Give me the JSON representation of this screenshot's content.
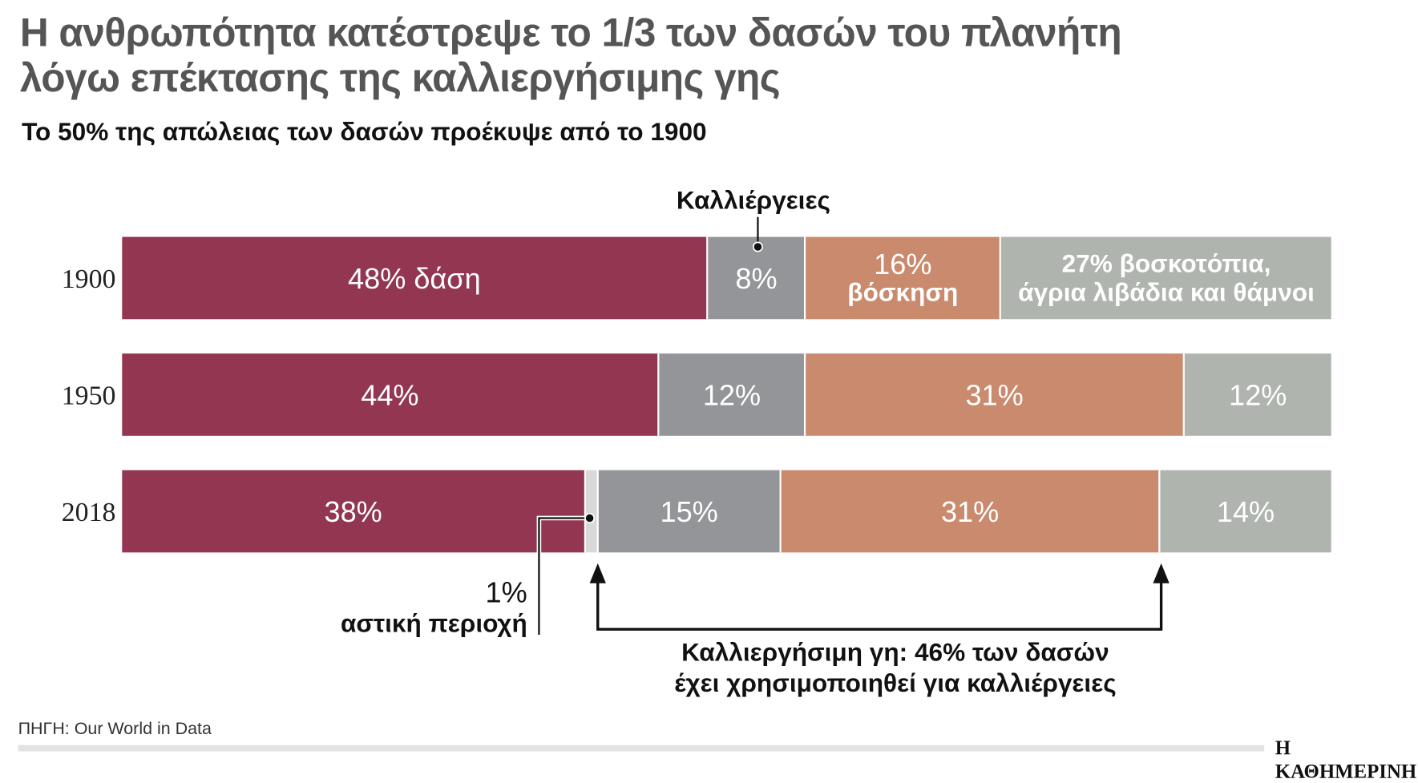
{
  "title_line1": "Η ανθρωπότητα κατέστρεψε το 1/3 των δασών του πλανήτη",
  "title_line2": "λόγω επέκτασης της καλλιεργήσιμης γης",
  "subtitle": "Το 50% της απώλειας των δασών προέκυψε από το 1900",
  "chart_data": {
    "type": "bar",
    "orientation": "horizontal-stacked",
    "categories": [
      "1900",
      "1950",
      "2018"
    ],
    "colors": {
      "forest": "#923651",
      "urban": "#d9d9d9",
      "cropland": "#939598",
      "grazing": "#c98a6e",
      "rough_grazing": "#afb4af"
    },
    "rows": [
      {
        "year": "1900",
        "segments": [
          {
            "key": "forest",
            "value": 48,
            "label": "48% δάση"
          },
          {
            "key": "cropland",
            "value": 8,
            "label": "8%"
          },
          {
            "key": "grazing",
            "value": 16,
            "label": "16%\nβόσκηση"
          },
          {
            "key": "rough_grazing",
            "value": 27,
            "label": "27% βοσκοτόπια,\nάγρια λιβάδια και θάμνοι"
          }
        ]
      },
      {
        "year": "1950",
        "segments": [
          {
            "key": "forest",
            "value": 44,
            "label": "44%"
          },
          {
            "key": "cropland",
            "value": 12,
            "label": "12%"
          },
          {
            "key": "grazing",
            "value": 31,
            "label": "31%"
          },
          {
            "key": "rough_grazing",
            "value": 12,
            "label": "12%"
          }
        ]
      },
      {
        "year": "2018",
        "segments": [
          {
            "key": "forest",
            "value": 38,
            "label": "38%"
          },
          {
            "key": "urban",
            "value": 1,
            "label": ""
          },
          {
            "key": "cropland",
            "value": 15,
            "label": "15%"
          },
          {
            "key": "grazing",
            "value": 31,
            "label": "31%"
          },
          {
            "key": "rough_grazing",
            "value": 14,
            "label": "14%"
          }
        ]
      }
    ],
    "annotations": {
      "cropland": "Καλλιέργειες",
      "urban_value": "1%",
      "urban_label": "αστική περιοχή",
      "agri_line1": "Καλλιεργήσιμη γη: 46% των δασών",
      "agri_line2": "έχει χρησιμοποιηθεί για καλλιέργειες"
    }
  },
  "source": "ΠΗΓΗ: Our World in Data",
  "logo": "Η ΚΑΘΗΜΕΡΙΝΗ"
}
